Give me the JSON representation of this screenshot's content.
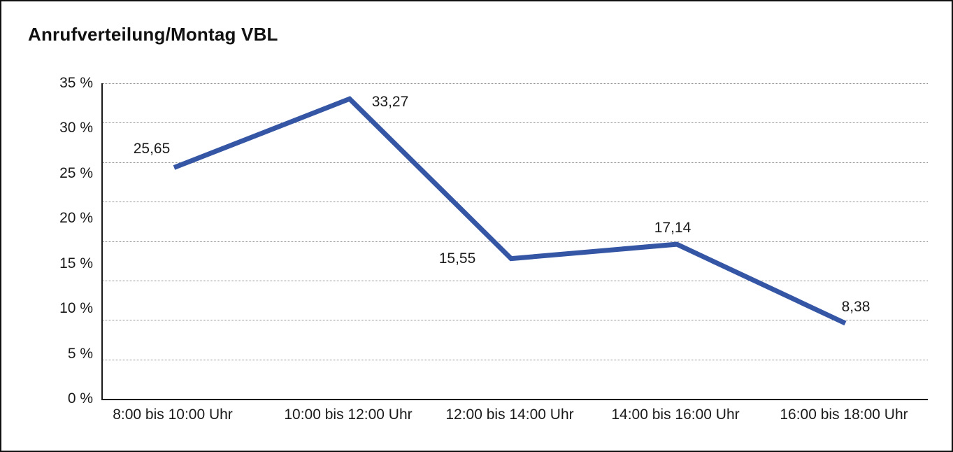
{
  "chart_data": {
    "type": "line",
    "title": "Anrufverteilung/Montag VBL",
    "categories": [
      "8:00 bis 10:00 Uhr",
      "10:00 bis 12:00 Uhr",
      "12:00 bis 14:00 Uhr",
      "14:00 bis 16:00 Uhr",
      "16:00 bis 18:00 Uhr"
    ],
    "values": [
      25.65,
      33.27,
      15.55,
      17.14,
      8.38
    ],
    "value_labels": [
      "25,65",
      "33,27",
      "15,55",
      "17,14",
      "8,38"
    ],
    "y_ticks": [
      {
        "value": 0,
        "label": "0 %"
      },
      {
        "value": 5,
        "label": "5 %"
      },
      {
        "value": 10,
        "label": "10 %"
      },
      {
        "value": 15,
        "label": "15 %"
      },
      {
        "value": 20,
        "label": "20 %"
      },
      {
        "value": 25,
        "label": "25 %"
      },
      {
        "value": 30,
        "label": "30 %"
      },
      {
        "value": 35,
        "label": "35 %"
      }
    ],
    "ylim": [
      0,
      35
    ],
    "xlabel": "",
    "ylabel": "",
    "legend": "none",
    "grid": "horizontal-dotted",
    "gridline_count": 9,
    "colors": {
      "line": "#3556A5",
      "axis": "#1a1a1a",
      "grid": "#8c8c8c",
      "text": "#1a1a1a",
      "background": "#ffffff"
    }
  }
}
